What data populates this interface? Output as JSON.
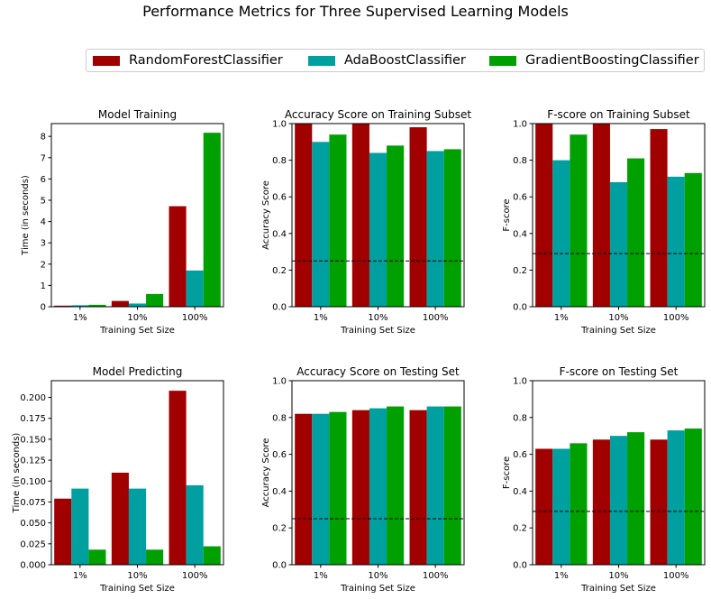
{
  "suptitle": "Performance Metrics for Three Supervised Learning Models",
  "legend": {
    "entries": [
      {
        "label": "RandomForestClassifier",
        "color": "#a00000"
      },
      {
        "label": "AdaBoostClassifier",
        "color": "#00a0a0"
      },
      {
        "label": "GradientBoostingClassifier",
        "color": "#00a000"
      }
    ]
  },
  "chart_data": [
    {
      "type": "bar",
      "title": "Model Training",
      "xlabel": "Training Set Size",
      "ylabel": "Time (in seconds)",
      "categories": [
        "1%",
        "10%",
        "100%"
      ],
      "ylim": [
        0,
        8.6
      ],
      "yticks": [
        0,
        1,
        2,
        3,
        4,
        5,
        6,
        7,
        8
      ],
      "tick_decimals": 0,
      "series": [
        {
          "name": "RandomForestClassifier",
          "values": [
            0.05,
            0.27,
            4.72
          ]
        },
        {
          "name": "AdaBoostClassifier",
          "values": [
            0.07,
            0.15,
            1.7
          ]
        },
        {
          "name": "GradientBoostingClassifier",
          "values": [
            0.09,
            0.6,
            8.17
          ]
        }
      ]
    },
    {
      "type": "bar",
      "title": "Accuracy Score on Training Subset",
      "xlabel": "Training Set Size",
      "ylabel": "Accuracy Score",
      "categories": [
        "1%",
        "10%",
        "100%"
      ],
      "ylim": [
        0,
        1
      ],
      "yticks": [
        0,
        0.2,
        0.4,
        0.6,
        0.8,
        1.0
      ],
      "tick_decimals": 1,
      "baseline": 0.25,
      "series": [
        {
          "name": "RandomForestClassifier",
          "values": [
            1.0,
            1.0,
            0.98
          ]
        },
        {
          "name": "AdaBoostClassifier",
          "values": [
            0.9,
            0.84,
            0.85
          ]
        },
        {
          "name": "GradientBoostingClassifier",
          "values": [
            0.94,
            0.88,
            0.86
          ]
        }
      ]
    },
    {
      "type": "bar",
      "title": "F-score on Training Subset",
      "xlabel": "Training Set Size",
      "ylabel": "F-score",
      "categories": [
        "1%",
        "10%",
        "100%"
      ],
      "ylim": [
        0,
        1
      ],
      "yticks": [
        0,
        0.2,
        0.4,
        0.6,
        0.8,
        1.0
      ],
      "tick_decimals": 1,
      "baseline": 0.29,
      "series": [
        {
          "name": "RandomForestClassifier",
          "values": [
            1.0,
            1.0,
            0.97
          ]
        },
        {
          "name": "AdaBoostClassifier",
          "values": [
            0.8,
            0.68,
            0.71
          ]
        },
        {
          "name": "GradientBoostingClassifier",
          "values": [
            0.94,
            0.81,
            0.73
          ]
        }
      ]
    },
    {
      "type": "bar",
      "title": "Model Predicting",
      "xlabel": "Training Set Size",
      "ylabel": "Time (in seconds)",
      "categories": [
        "1%",
        "10%",
        "100%"
      ],
      "ylim": [
        0,
        0.22
      ],
      "yticks": [
        0,
        0.025,
        0.05,
        0.075,
        0.1,
        0.125,
        0.15,
        0.175,
        0.2
      ],
      "tick_decimals": 3,
      "series": [
        {
          "name": "RandomForestClassifier",
          "values": [
            0.079,
            0.11,
            0.208
          ]
        },
        {
          "name": "AdaBoostClassifier",
          "values": [
            0.091,
            0.091,
            0.095
          ]
        },
        {
          "name": "GradientBoostingClassifier",
          "values": [
            0.018,
            0.018,
            0.022
          ]
        }
      ]
    },
    {
      "type": "bar",
      "title": "Accuracy Score on Testing Set",
      "xlabel": "Training Set Size",
      "ylabel": "Accuracy Score",
      "categories": [
        "1%",
        "10%",
        "100%"
      ],
      "ylim": [
        0,
        1
      ],
      "yticks": [
        0,
        0.2,
        0.4,
        0.6,
        0.8,
        1.0
      ],
      "tick_decimals": 1,
      "baseline": 0.25,
      "series": [
        {
          "name": "RandomForestClassifier",
          "values": [
            0.82,
            0.84,
            0.84
          ]
        },
        {
          "name": "AdaBoostClassifier",
          "values": [
            0.82,
            0.85,
            0.86
          ]
        },
        {
          "name": "GradientBoostingClassifier",
          "values": [
            0.83,
            0.86,
            0.86
          ]
        }
      ]
    },
    {
      "type": "bar",
      "title": "F-score on Testing Set",
      "xlabel": "Training Set Size",
      "ylabel": "F-score",
      "categories": [
        "1%",
        "10%",
        "100%"
      ],
      "ylim": [
        0,
        1
      ],
      "yticks": [
        0,
        0.2,
        0.4,
        0.6,
        0.8,
        1.0
      ],
      "tick_decimals": 1,
      "baseline": 0.29,
      "series": [
        {
          "name": "RandomForestClassifier",
          "values": [
            0.63,
            0.68,
            0.68
          ]
        },
        {
          "name": "AdaBoostClassifier",
          "values": [
            0.63,
            0.7,
            0.73
          ]
        },
        {
          "name": "GradientBoostingClassifier",
          "values": [
            0.66,
            0.72,
            0.74
          ]
        }
      ]
    }
  ]
}
